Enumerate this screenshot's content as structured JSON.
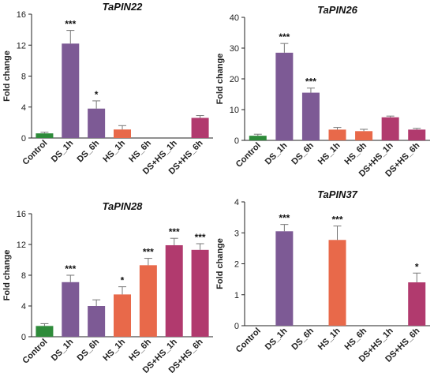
{
  "colors": {
    "control": "#2e8b3a",
    "ds": "#7d5a95",
    "hs": "#e8694a",
    "dshs": "#b13a6e"
  },
  "chart_data": [
    {
      "type": "bar",
      "title": "TaPIN22",
      "ylabel": "Fold change",
      "ylim": [
        0,
        16
      ],
      "yticks": [
        "0",
        "4",
        "8",
        "12",
        "16"
      ],
      "categories": [
        "Control",
        "DS_1h",
        "DS_6h",
        "HS_1h",
        "HS_6h",
        "DS+HS_1h",
        "DS+HS_6h"
      ],
      "values": [
        0.6,
        12.2,
        3.8,
        1.1,
        0,
        0,
        2.6
      ],
      "errors": [
        0.15,
        1.7,
        1.0,
        0.5,
        0,
        0,
        0.3
      ],
      "significance": [
        "",
        "***",
        "*",
        "",
        "",
        "",
        ""
      ],
      "groups": [
        "control",
        "ds",
        "ds",
        "hs",
        "hs",
        "dshs",
        "dshs"
      ]
    },
    {
      "type": "bar",
      "title": "TaPIN26",
      "ylabel": "Fold change",
      "ylim": [
        0,
        40
      ],
      "yticks": [
        "0",
        "10",
        "20",
        "30",
        "40"
      ],
      "categories": [
        "Control",
        "DS_1h",
        "DS_6h",
        "HS_1h",
        "HS_6h",
        "DS+HS_1h",
        "DS+HS_6h"
      ],
      "values": [
        1.5,
        28.5,
        15.5,
        3.5,
        3.0,
        7.5,
        3.5
      ],
      "errors": [
        0.5,
        3.0,
        1.5,
        0.7,
        0.6,
        0.4,
        0.4
      ],
      "significance": [
        "",
        "***",
        "***",
        "",
        "",
        "",
        ""
      ],
      "groups": [
        "control",
        "ds",
        "ds",
        "hs",
        "hs",
        "dshs",
        "dshs"
      ]
    },
    {
      "type": "bar",
      "title": "TaPIN28",
      "ylabel": "Fold change",
      "ylim": [
        0,
        16
      ],
      "yticks": [
        "0",
        "4",
        "8",
        "12",
        "16"
      ],
      "categories": [
        "Control",
        "DS_1h",
        "DS_6h",
        "HS_1h",
        "HS_6h",
        "DS+HS_1h",
        "DS+HS_6h"
      ],
      "values": [
        1.4,
        7.1,
        4.0,
        5.5,
        9.3,
        11.9,
        11.3
      ],
      "errors": [
        0.3,
        0.9,
        0.8,
        1.0,
        0.9,
        0.9,
        0.8
      ],
      "significance": [
        "",
        "***",
        "",
        "*",
        "***",
        "***",
        "***"
      ],
      "groups": [
        "control",
        "ds",
        "ds",
        "hs",
        "hs",
        "dshs",
        "dshs"
      ]
    },
    {
      "type": "bar",
      "title": "TaPIN37",
      "ylabel": "Fold change",
      "ylim": [
        0,
        4
      ],
      "yticks": [
        "0",
        "1",
        "2",
        "3",
        "4"
      ],
      "categories": [
        "Control",
        "DS_1h",
        "DS_6h",
        "HS_1h",
        "HS_6h",
        "DS+HS_1h",
        "DS+HS_6h"
      ],
      "values": [
        0,
        3.05,
        0,
        2.77,
        0,
        0,
        1.4
      ],
      "errors": [
        0,
        0.22,
        0,
        0.45,
        0,
        0,
        0.3
      ],
      "significance": [
        "",
        "***",
        "",
        "***",
        "",
        "",
        "*"
      ],
      "groups": [
        "control",
        "ds",
        "ds",
        "hs",
        "hs",
        "dshs",
        "dshs"
      ]
    }
  ]
}
